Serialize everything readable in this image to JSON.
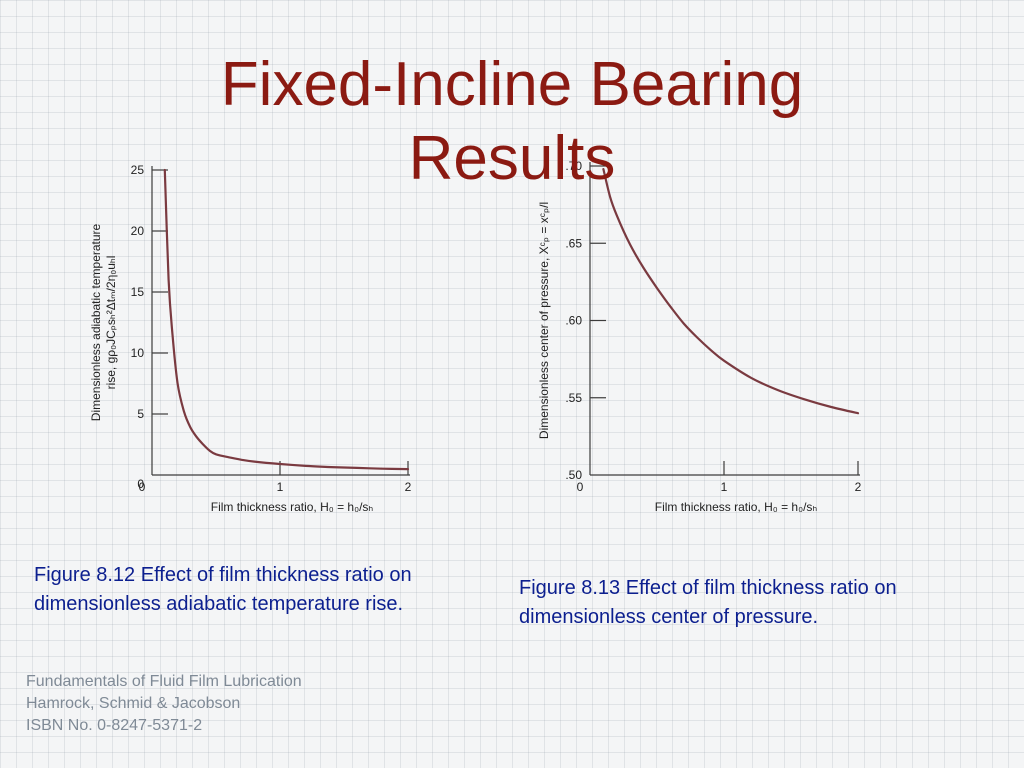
{
  "title": {
    "line1": "Fixed-Incline Bearing",
    "line2": "Results",
    "color": "#8b1a12"
  },
  "chart_data": [
    {
      "type": "line",
      "title": "",
      "xlabel": "Film thickness ratio,  H₀ = h₀/sₕ",
      "ylabel_line1": "Dimensionless adiabatic temperature",
      "ylabel_line2": "rise,  gρ₀JCₚsₕ²Δtₘ/2η₀uₕl",
      "xlim": [
        0,
        2
      ],
      "ylim": [
        0,
        25
      ],
      "x_ticks": [
        "0",
        "1",
        "2"
      ],
      "y_ticks": [
        "0",
        "5",
        "10",
        "15",
        "20",
        "25"
      ],
      "grid": false,
      "series": [
        {
          "color": "#7a3a40",
          "x": [
            0.1,
            0.13,
            0.16,
            0.2,
            0.25,
            0.3,
            0.35,
            0.4,
            0.45,
            0.5,
            0.6,
            0.7,
            0.8,
            1.0,
            1.2,
            1.4,
            1.6,
            1.8,
            2.0
          ],
          "y": [
            25,
            16,
            11.5,
            7.5,
            5.2,
            3.9,
            3.1,
            2.5,
            2.0,
            1.7,
            1.45,
            1.25,
            1.1,
            0.9,
            0.75,
            0.65,
            0.58,
            0.52,
            0.48
          ]
        }
      ]
    },
    {
      "type": "line",
      "title": "",
      "xlabel": "Film thickness ratio,  H₀ = h₀/sₕ",
      "ylabel": "Dimensionless center of pressure,  Xᶜₚ = xᶜₚ/l",
      "xlim": [
        0,
        2
      ],
      "ylim": [
        0.5,
        0.7
      ],
      "x_ticks": [
        "0",
        "1",
        "2"
      ],
      "y_ticks": [
        ".50",
        ".55",
        ".60",
        ".65",
        ".70"
      ],
      "grid": false,
      "series": [
        {
          "color": "#7a3a40",
          "x": [
            0.1,
            0.15,
            0.2,
            0.3,
            0.4,
            0.5,
            0.6,
            0.7,
            0.8,
            0.9,
            1.0,
            1.2,
            1.4,
            1.6,
            1.8,
            2.0
          ],
          "y": [
            0.698,
            0.68,
            0.668,
            0.649,
            0.634,
            0.621,
            0.609,
            0.598,
            0.589,
            0.581,
            0.574,
            0.563,
            0.555,
            0.549,
            0.544,
            0.54
          ]
        }
      ]
    }
  ],
  "captions": {
    "fig12": "Figure 8.12   Effect of film thickness ratio on dimensionless adiabatic temperature rise.",
    "fig13": "Figure 8.13   Effect of film thickness ratio on dimensionless center of pressure.",
    "color": "#0c1f8f"
  },
  "footer": {
    "line1": "Fundamentals of Fluid Film Lubrication",
    "line2": "Hamrock, Schmid & Jacobson",
    "line3": "ISBN No. 0-8247-5371-2"
  }
}
